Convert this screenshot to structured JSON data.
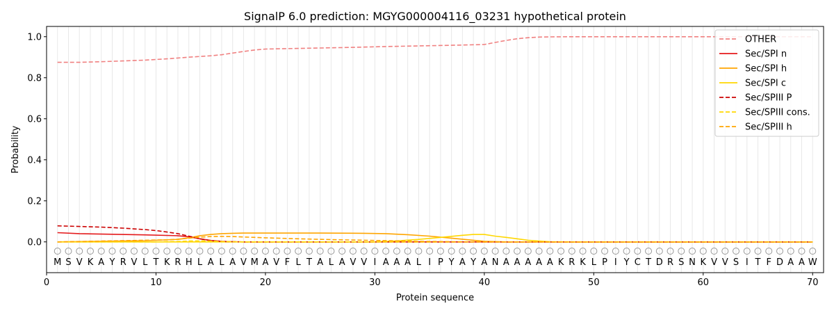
{
  "chart_data": {
    "type": "line",
    "title": "SignalP 6.0 prediction: MGYG000004116_03231 hypothetical protein",
    "xlabel": "Protein sequence",
    "ylabel": "Probability",
    "xlim": [
      0,
      71
    ],
    "ylim": [
      -0.15,
      1.05
    ],
    "xticks": [
      0,
      10,
      20,
      30,
      40,
      50,
      60,
      70
    ],
    "yticks": [
      0.0,
      0.2,
      0.4,
      0.6,
      0.8,
      1.0
    ],
    "sequence": [
      "M",
      "S",
      "V",
      "K",
      "A",
      "Y",
      "R",
      "V",
      "L",
      "T",
      "K",
      "R",
      "H",
      "L",
      "A",
      "L",
      "A",
      "V",
      "M",
      "A",
      "V",
      "F",
      "L",
      "T",
      "A",
      "L",
      "A",
      "V",
      "V",
      "I",
      "A",
      "A",
      "A",
      "L",
      "I",
      "P",
      "Y",
      "A",
      "Y",
      "A",
      "N",
      "A",
      "A",
      "A",
      "A",
      "A",
      "K",
      "R",
      "K",
      "L",
      "P",
      "I",
      "Y",
      "C",
      "T",
      "D",
      "R",
      "S",
      "N",
      "K",
      "V",
      "V",
      "S",
      "I",
      "T",
      "F",
      "D",
      "A",
      "A",
      "W"
    ],
    "region_marker": "O",
    "legend_position": "upper right",
    "grid": "vertical lines at each residue",
    "series": [
      {
        "name": "OTHER",
        "color": "#f08080",
        "style": "dashed",
        "x": [
          1,
          3,
          5,
          7,
          9,
          11,
          13,
          15,
          16,
          17,
          18,
          19,
          20,
          22,
          25,
          28,
          31,
          34,
          37,
          40,
          41,
          42,
          43,
          44,
          45,
          46,
          48,
          50,
          70
        ],
        "values": [
          0.875,
          0.875,
          0.878,
          0.882,
          0.886,
          0.892,
          0.9,
          0.907,
          0.912,
          0.92,
          0.928,
          0.935,
          0.94,
          0.942,
          0.945,
          0.948,
          0.952,
          0.955,
          0.958,
          0.962,
          0.972,
          0.982,
          0.99,
          0.995,
          0.998,
          0.999,
          1.0,
          1.0,
          1.0
        ]
      },
      {
        "name": "Sec/SPI n",
        "color": "#e41a1c",
        "style": "solid",
        "x": [
          1,
          3,
          6,
          9,
          12,
          13,
          14,
          15,
          16,
          17,
          18,
          20,
          70
        ],
        "values": [
          0.045,
          0.04,
          0.037,
          0.034,
          0.03,
          0.025,
          0.015,
          0.007,
          0.003,
          0.001,
          0.0,
          0.0,
          0.0
        ]
      },
      {
        "name": "Sec/SPI h",
        "color": "#ffa500",
        "style": "solid",
        "x": [
          1,
          5,
          9,
          12,
          13,
          14,
          15,
          16,
          17,
          18,
          20,
          25,
          29,
          31,
          33,
          35,
          37,
          39,
          40,
          42,
          70
        ],
        "values": [
          0.0,
          0.003,
          0.006,
          0.012,
          0.02,
          0.03,
          0.036,
          0.04,
          0.042,
          0.043,
          0.043,
          0.043,
          0.042,
          0.04,
          0.035,
          0.028,
          0.018,
          0.008,
          0.003,
          0.0,
          0.0
        ]
      },
      {
        "name": "Sec/SPI c",
        "color": "#ffd700",
        "style": "solid",
        "x": [
          1,
          30,
          32,
          34,
          36,
          38,
          39,
          40,
          41,
          42,
          43,
          44,
          45,
          46,
          48,
          70
        ],
        "values": [
          0.0,
          0.0,
          0.005,
          0.012,
          0.022,
          0.032,
          0.036,
          0.036,
          0.028,
          0.022,
          0.015,
          0.008,
          0.004,
          0.001,
          0.0,
          0.0
        ]
      },
      {
        "name": "Sec/SPIII P",
        "color": "#cc0000",
        "style": "dashed",
        "x": [
          1,
          3,
          5,
          7,
          9,
          10,
          11,
          12,
          13,
          14,
          15,
          16,
          17,
          18,
          20,
          70
        ],
        "values": [
          0.078,
          0.075,
          0.072,
          0.067,
          0.06,
          0.055,
          0.048,
          0.04,
          0.028,
          0.015,
          0.006,
          0.002,
          0.001,
          0.0,
          0.0,
          0.0
        ]
      },
      {
        "name": "Sec/SPIII cons.",
        "color": "#ffd700",
        "style": "dashed",
        "x": [
          1,
          10,
          12,
          13,
          14,
          15,
          16,
          17,
          18,
          20,
          70
        ],
        "values": [
          0.0,
          0.0,
          0.002,
          0.004,
          0.005,
          0.004,
          0.002,
          0.001,
          0.0,
          0.0,
          0.0
        ]
      },
      {
        "name": "Sec/SPIII h",
        "color": "#ffa500",
        "style": "dashed",
        "x": [
          1,
          5,
          9,
          11,
          12,
          13,
          14,
          15,
          16,
          17,
          18,
          20,
          23,
          26,
          30,
          34,
          37,
          40,
          70
        ],
        "values": [
          0.0,
          0.004,
          0.008,
          0.01,
          0.013,
          0.018,
          0.023,
          0.026,
          0.027,
          0.026,
          0.024,
          0.02,
          0.015,
          0.011,
          0.007,
          0.003,
          0.001,
          0.0,
          0.0
        ]
      }
    ]
  }
}
